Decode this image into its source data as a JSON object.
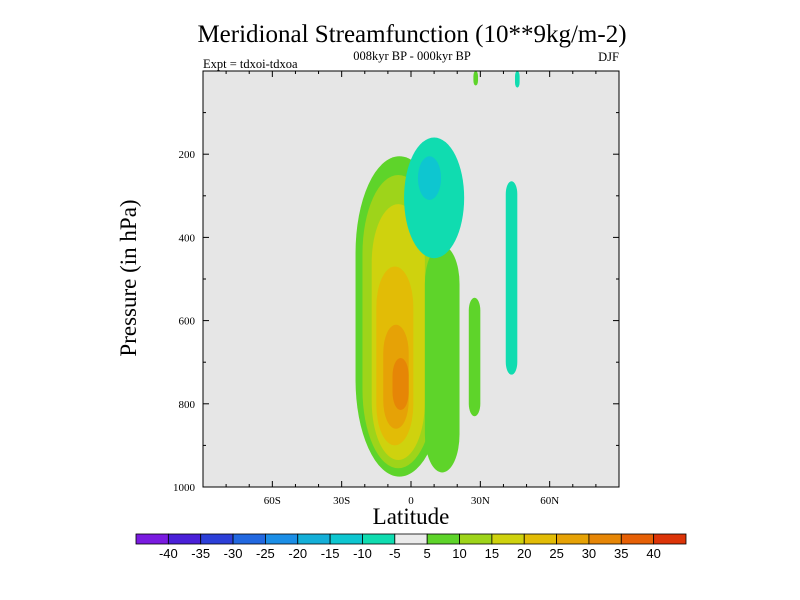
{
  "chart_data": {
    "type": "heatmap",
    "title": "Meridional Streamfunction (10**9kg/m-2)",
    "subtitle": "008kyr BP - 000kyr BP",
    "left_label": "Expt = tdxoi-tdxoa",
    "right_label": "DJF",
    "xlabel": "Latitude",
    "ylabel": "Pressure (in hPa)",
    "xlim": [
      -90,
      90
    ],
    "ylim": [
      0,
      1000
    ],
    "y_reversed": true,
    "x_ticks": [
      {
        "value": -60,
        "label": "60S"
      },
      {
        "value": -30,
        "label": "30S"
      },
      {
        "value": 0,
        "label": "0"
      },
      {
        "value": 30,
        "label": "30N"
      },
      {
        "value": 60,
        "label": "60N"
      }
    ],
    "y_ticks": [
      {
        "value": 200,
        "label": "200"
      },
      {
        "value": 400,
        "label": "400"
      },
      {
        "value": 600,
        "label": "600"
      },
      {
        "value": 800,
        "label": "800"
      },
      {
        "value": 1000,
        "label": "1000"
      }
    ],
    "background_color": "#e6e6e6",
    "colorbar": {
      "levels": [
        -40,
        -35,
        -30,
        -25,
        -20,
        -15,
        -10,
        -5,
        5,
        10,
        15,
        20,
        25,
        30,
        35,
        40
      ],
      "labels": [
        "-40",
        "-35",
        "-30",
        "-25",
        "-20",
        "-15",
        "-10",
        "-5",
        "5",
        "10",
        "15",
        "20",
        "25",
        "30",
        "35",
        "40"
      ],
      "colors": [
        "#7a1be0",
        "#4a20d8",
        "#2c3fd8",
        "#2268e0",
        "#1b8ee6",
        "#14afd8",
        "#0ec6d0",
        "#10dcb0",
        "#ebebeb",
        "#5ed42a",
        "#9ed41a",
        "#cfd20e",
        "#e2bc06",
        "#e6a206",
        "#e68606",
        "#e66006",
        "#dc3408"
      ]
    },
    "regions": [
      {
        "value": 7.5,
        "lat_range": [
          -24,
          14
        ],
        "p_range": [
          205,
          975
        ]
      },
      {
        "value": 12.5,
        "lat_range": [
          -21,
          10
        ],
        "p_range": [
          250,
          955
        ]
      },
      {
        "value": 17.5,
        "lat_range": [
          -17,
          6
        ],
        "p_range": [
          320,
          935
        ]
      },
      {
        "value": 22.5,
        "lat_range": [
          -15,
          1
        ],
        "p_range": [
          470,
          900
        ]
      },
      {
        "value": 27.5,
        "lat_range": [
          -12,
          -1
        ],
        "p_range": [
          610,
          860
        ]
      },
      {
        "value": 32.5,
        "lat_range": [
          -8,
          -1
        ],
        "p_range": [
          690,
          815
        ]
      },
      {
        "value": 7.5,
        "lat_range": [
          6,
          21
        ],
        "p_range": [
          420,
          965
        ]
      },
      {
        "value": 7.5,
        "lat_range": [
          25,
          30
        ],
        "p_range": [
          545,
          830
        ]
      },
      {
        "value": -7.5,
        "lat_range": [
          -3,
          23
        ],
        "p_range": [
          160,
          450
        ]
      },
      {
        "value": -12.5,
        "lat_range": [
          3,
          13
        ],
        "p_range": [
          205,
          310
        ]
      },
      {
        "value": -7.5,
        "lat_range": [
          41,
          46
        ],
        "p_range": [
          265,
          730
        ]
      },
      {
        "value": -7.5,
        "lat_range": [
          45,
          47
        ],
        "p_range": [
          0,
          40
        ]
      },
      {
        "value": 7.5,
        "lat_range": [
          27,
          29
        ],
        "p_range": [
          0,
          35
        ]
      }
    ]
  }
}
